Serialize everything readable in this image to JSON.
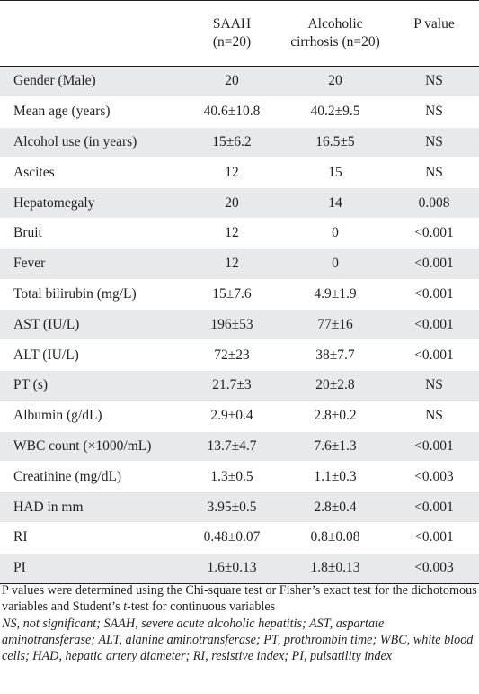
{
  "table": {
    "headers": [
      {
        "line1": "",
        "line2": ""
      },
      {
        "line1": "SAAH",
        "line2": "(n=20)"
      },
      {
        "line1": "Alcoholic",
        "line2": "cirrhosis  (n=20)"
      },
      {
        "line1": "P  value",
        "line2": ""
      }
    ],
    "rows": [
      [
        "Gender (Male)",
        "20",
        "20",
        "NS"
      ],
      [
        "Mean age (years)",
        "40.6±10.8",
        "40.2±9.5",
        "NS"
      ],
      [
        "Alcohol use (in years)",
        "15±6.2",
        "16.5±5",
        "NS"
      ],
      [
        "Ascites",
        "12",
        "15",
        "NS"
      ],
      [
        "Hepatomegaly",
        "20",
        "14",
        "0.008"
      ],
      [
        "Bruit",
        "12",
        "0",
        "<0.001"
      ],
      [
        "Fever",
        "12",
        "0",
        "<0.001"
      ],
      [
        "Total bilirubin (mg/L)",
        "15±7.6",
        "4.9±1.9",
        "<0.001"
      ],
      [
        "AST (IU/L)",
        "196±53",
        "77±16",
        "<0.001"
      ],
      [
        "ALT (IU/L)",
        "72±23",
        "38±7.7",
        "<0.001"
      ],
      [
        "PT (s)",
        "21.7±3",
        "20±2.8",
        "NS"
      ],
      [
        "Albumin (g/dL)",
        "2.9±0.4",
        "2.8±0.2",
        "NS"
      ],
      [
        "WBC count (×1000/mL)",
        "13.7±4.7",
        "7.6±1.3",
        "<0.001"
      ],
      [
        "Creatinine (mg/dL)",
        "1.3±0.5",
        "1.1±0.3",
        "<0.003"
      ],
      [
        "HAD in mm",
        "3.95±0.5",
        "2.8±0.4",
        "<0.001"
      ],
      [
        "RI",
        "0.48±0.07",
        "0.8±0.08",
        "<0.001"
      ],
      [
        "PI",
        "1.6±0.13",
        "1.8±0.13",
        "<0.003"
      ]
    ]
  },
  "notes": {
    "method_a": "P values were determined using the Chi-square test or Fisher’s exact test for the dichotomous variables and Student’s ",
    "method_t": "t",
    "method_b": "-test for continuous variables",
    "abbreviations": "NS, not significant; SAAH, severe acute alcoholic hepatitis; AST, aspartate aminotransferase; ALT, alanine aminotransferase; PT, prothrombin time; WBC, white blood cells; HAD, hepatic artery diameter; RI, resistive index; PI, pulsatility index"
  }
}
